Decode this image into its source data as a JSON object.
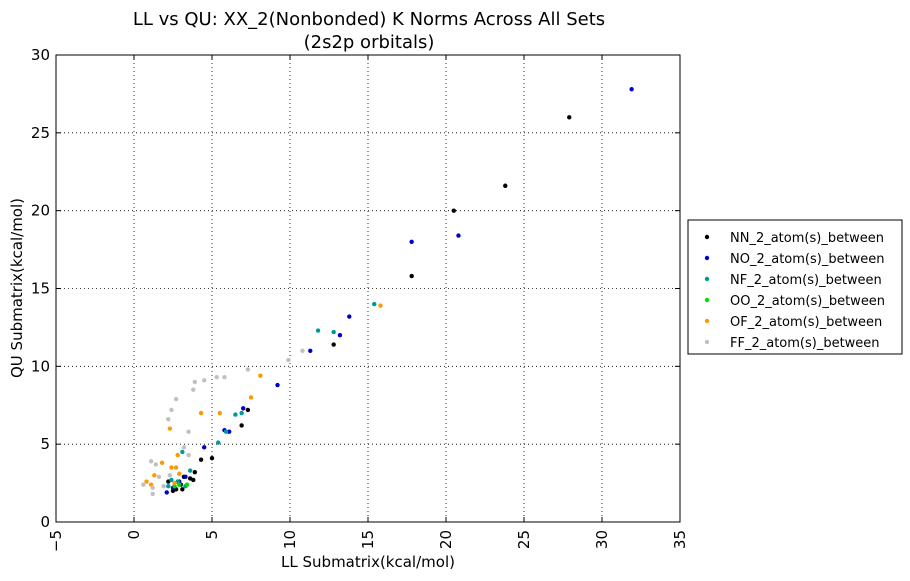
{
  "chart_data": {
    "type": "scatter",
    "title": "LL vs QU: XX_2(Nonbonded) K Norms Across All Sets",
    "subtitle": "(2s2p orbitals)",
    "xlabel": "LL Submatrix(kcal/mol)",
    "ylabel": "QU Submatrix(kcal/mol)",
    "xlim": [
      -5,
      35
    ],
    "ylim": [
      0,
      30
    ],
    "xticks": [
      -5,
      0,
      5,
      10,
      15,
      20,
      25,
      30,
      35
    ],
    "yticks": [
      0,
      5,
      10,
      15,
      20,
      25,
      30
    ],
    "xtick_labels": [
      "−5",
      "0",
      "5",
      "10",
      "15",
      "20",
      "25",
      "30",
      "35"
    ],
    "ytick_labels": [
      "0",
      "5",
      "10",
      "15",
      "20",
      "25",
      "30"
    ],
    "grid": true,
    "legend_position": "outside-right",
    "series": [
      {
        "name": "NN_2_atom(s)_between",
        "color": "#000000",
        "points": [
          [
            27.9,
            26.0
          ],
          [
            23.8,
            21.6
          ],
          [
            20.5,
            20.0
          ],
          [
            17.8,
            15.8
          ],
          [
            12.8,
            11.4
          ],
          [
            7.3,
            7.2
          ],
          [
            6.9,
            6.2
          ],
          [
            5.0,
            4.1
          ],
          [
            4.3,
            4.0
          ],
          [
            3.9,
            3.2
          ],
          [
            3.6,
            2.8
          ],
          [
            3.2,
            2.9
          ],
          [
            3.0,
            2.4
          ],
          [
            2.7,
            2.1
          ],
          [
            2.5,
            2.0
          ],
          [
            2.2,
            2.6
          ],
          [
            3.8,
            2.7
          ],
          [
            3.1,
            2.1
          ]
        ]
      },
      {
        "name": "NO_2_atom(s)_between",
        "color": "#0000cc",
        "points": [
          [
            31.9,
            27.8
          ],
          [
            20.8,
            18.4
          ],
          [
            17.8,
            18.0
          ],
          [
            13.8,
            13.2
          ],
          [
            13.2,
            12.0
          ],
          [
            11.3,
            11.0
          ],
          [
            9.2,
            8.8
          ],
          [
            7.0,
            7.3
          ],
          [
            6.1,
            5.8
          ],
          [
            5.8,
            5.9
          ],
          [
            4.5,
            4.8
          ],
          [
            3.3,
            2.9
          ],
          [
            2.9,
            2.6
          ],
          [
            2.5,
            2.2
          ],
          [
            2.1,
            1.9
          ]
        ]
      },
      {
        "name": "NF_2_atom(s)_between",
        "color": "#009999",
        "points": [
          [
            15.4,
            14.0
          ],
          [
            12.8,
            12.2
          ],
          [
            11.8,
            12.3
          ],
          [
            6.9,
            7.0
          ],
          [
            6.5,
            6.9
          ],
          [
            5.9,
            5.8
          ],
          [
            5.4,
            5.1
          ],
          [
            3.6,
            3.3
          ],
          [
            3.1,
            4.5
          ],
          [
            3.3,
            2.3
          ],
          [
            2.8,
            2.6
          ],
          [
            2.4,
            2.7
          ],
          [
            2.2,
            2.3
          ]
        ]
      },
      {
        "name": "OO_2_atom(s)_between",
        "color": "#00dd00",
        "points": [
          [
            2.9,
            2.4
          ],
          [
            2.6,
            2.3
          ],
          [
            3.4,
            2.4
          ]
        ]
      },
      {
        "name": "OF_2_atom(s)_between",
        "color": "#ff9900",
        "points": [
          [
            15.8,
            13.9
          ],
          [
            8.1,
            9.4
          ],
          [
            7.5,
            8.0
          ],
          [
            5.5,
            7.0
          ],
          [
            4.3,
            7.0
          ],
          [
            2.3,
            6.0
          ],
          [
            2.8,
            4.3
          ],
          [
            1.8,
            3.8
          ],
          [
            2.4,
            3.5
          ],
          [
            2.7,
            3.5
          ],
          [
            1.3,
            3.0
          ],
          [
            0.8,
            2.6
          ],
          [
            1.1,
            2.4
          ],
          [
            2.6,
            2.5
          ],
          [
            2.9,
            3.1
          ]
        ]
      },
      {
        "name": "FF_2_atom(s)_between",
        "color": "#c0c0c0",
        "points": [
          [
            10.8,
            11.0
          ],
          [
            9.9,
            10.4
          ],
          [
            7.3,
            9.8
          ],
          [
            5.8,
            9.3
          ],
          [
            5.3,
            9.3
          ],
          [
            4.5,
            9.1
          ],
          [
            3.9,
            9.0
          ],
          [
            3.8,
            8.5
          ],
          [
            2.7,
            7.9
          ],
          [
            2.4,
            7.2
          ],
          [
            2.2,
            6.6
          ],
          [
            3.5,
            5.8
          ],
          [
            3.5,
            4.3
          ],
          [
            3.2,
            4.8
          ],
          [
            1.1,
            3.9
          ],
          [
            1.4,
            3.7
          ],
          [
            1.2,
            2.2
          ],
          [
            1.2,
            1.8
          ],
          [
            0.6,
            2.4
          ],
          [
            1.9,
            2.3
          ],
          [
            2.3,
            3.0
          ],
          [
            1.6,
            2.9
          ]
        ]
      }
    ]
  }
}
